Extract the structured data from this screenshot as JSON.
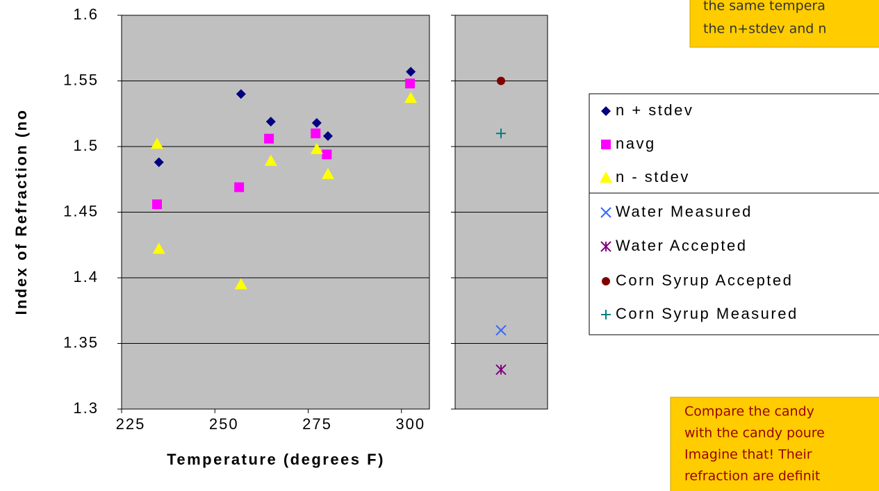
{
  "chart_data": {
    "type": "scatter",
    "xlabel": "Temperature (degrees F)",
    "ylabel": "Index of Refraction (no",
    "xlim": [
      225,
      307.5
    ],
    "xticks": [
      225,
      250,
      275,
      300
    ],
    "ylim": [
      1.3,
      1.6
    ],
    "yticks": [
      {
        "value": 1.3,
        "label": "1.3"
      },
      1.35,
      {
        "value": 1.4,
        "label": "1.4"
      },
      1.45,
      {
        "value": 1.5,
        "label": "1.5"
      },
      1.55,
      {
        "value": 1.6,
        "label": "1.6"
      }
    ],
    "grid": true,
    "series": [
      {
        "name": "n + stdev",
        "color": "#000080",
        "marker": "diamond",
        "x": [
          235,
          257,
          265,
          277.3,
          280.3,
          302.5
        ],
        "values": [
          1.488,
          1.54,
          1.519,
          1.518,
          1.508,
          1.557
        ]
      },
      {
        "name": "navg",
        "color": "#ff00ff",
        "marker": "square",
        "x": [
          234.5,
          256.5,
          264.5,
          277,
          280,
          302.3
        ],
        "values": [
          1.456,
          1.469,
          1.506,
          1.51,
          1.494,
          1.548
        ]
      },
      {
        "name": "n - stdev",
        "color": "#ffff00",
        "marker": "triangle",
        "x": [
          234.5,
          235,
          257,
          265,
          277.3,
          280.3,
          302.5
        ],
        "values": [
          1.502,
          1.422,
          1.395,
          1.489,
          1.498,
          1.479,
          1.537
        ]
      },
      {
        "name": "Water Measured",
        "color": "#3366ff",
        "marker": "x",
        "values": [
          1.36
        ]
      },
      {
        "name": "Water Accepted",
        "color": "#800080",
        "marker": "star",
        "values": [
          1.33
        ]
      },
      {
        "name": "Corn Syrup Accepted",
        "color": "#800000",
        "marker": "circle",
        "values": [
          1.55
        ]
      },
      {
        "name": "Corn Syrup Measured",
        "color": "#008080",
        "marker": "plus",
        "values": [
          1.51
        ]
      }
    ]
  },
  "notes": [
    {
      "lines": [
        "the same tempera",
        "the n+stdev and n"
      ]
    },
    {
      "lines": [
        "Compare the candy",
        "with the candy poure",
        "Imagine that!  Their",
        "refraction are definit"
      ]
    }
  ]
}
